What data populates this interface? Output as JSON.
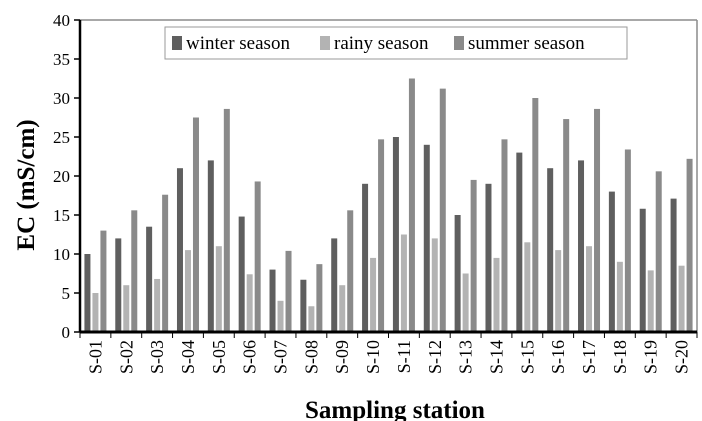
{
  "chart_data": {
    "type": "bar",
    "title": "",
    "xlabel": "Sampling station",
    "ylabel": "EC (mS/cm)",
    "ylim": [
      0,
      40
    ],
    "yticks": [
      0,
      5,
      10,
      15,
      20,
      25,
      30,
      35,
      40
    ],
    "grid": false,
    "legend_position": "top-right",
    "categories": [
      "S-01",
      "S-02",
      "S-03",
      "S-04",
      "S-05",
      "S-06",
      "S-07",
      "S-08",
      "S-09",
      "S-10",
      "S-11",
      "S-12",
      "S-13",
      "S-14",
      "S-15",
      "S-16",
      "S-17",
      "S-18",
      "S-19",
      "S-20"
    ],
    "series": [
      {
        "name": "winter season",
        "color": "#5f5f5f",
        "values": [
          10,
          12,
          13.5,
          21,
          22,
          14.8,
          8,
          6.7,
          12,
          19,
          25,
          24,
          15,
          19,
          23,
          21,
          22,
          18,
          15.8,
          17.1
        ]
      },
      {
        "name": "rainy season",
        "color": "#b3b3b3",
        "values": [
          5,
          6,
          6.8,
          10.5,
          11,
          7.4,
          4,
          3.3,
          6,
          9.5,
          12.5,
          12,
          7.5,
          9.5,
          11.5,
          10.5,
          11,
          9,
          7.9,
          8.5
        ]
      },
      {
        "name": "summer season",
        "color": "#8a8a8a",
        "values": [
          13,
          15.6,
          17.6,
          27.5,
          28.6,
          19.3,
          10.4,
          8.7,
          15.6,
          24.7,
          32.5,
          31.2,
          19.5,
          24.7,
          30,
          27.3,
          28.6,
          23.4,
          20.6,
          22.2
        ]
      }
    ]
  }
}
